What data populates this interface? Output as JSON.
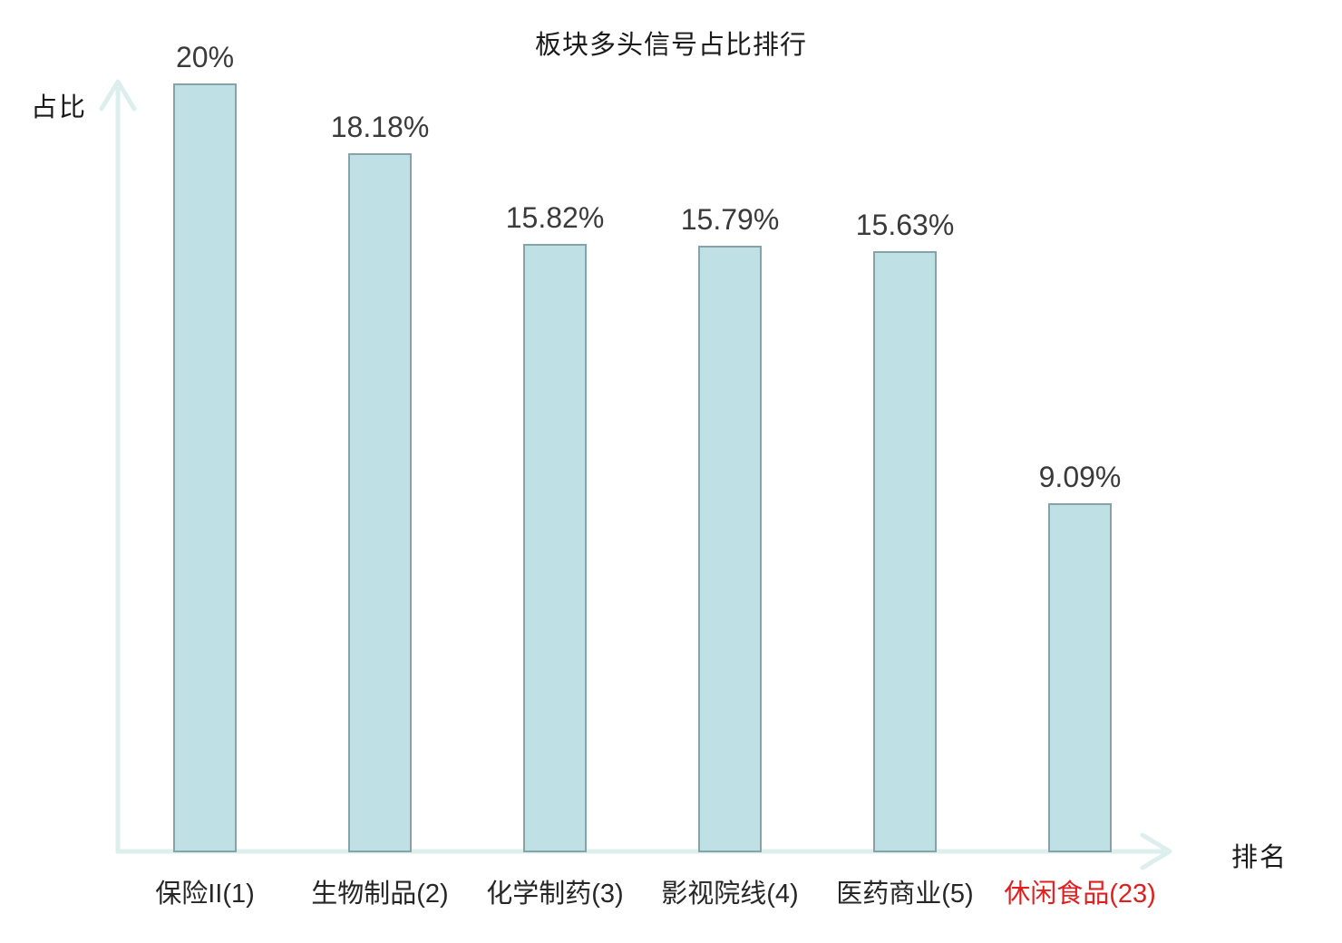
{
  "colors": {
    "background": "#ffffff",
    "title": "#1a1a1a",
    "bar_fill": "#bfe0e4",
    "bar_border": "#85a3a9",
    "axis": "#ddefec",
    "value_label": "#3a3a3a",
    "category_label": "#262626",
    "highlight": "#e02020"
  },
  "chart_data": {
    "type": "bar",
    "title": "板块多头信号占比排行",
    "xlabel": "排名",
    "ylabel": "占比",
    "categories": [
      "保险II(1)",
      "生物制品(2)",
      "化学制药(3)",
      "影视院线(4)",
      "医药商业(5)",
      "休闲食品(23)"
    ],
    "values": [
      20,
      18.18,
      15.82,
      15.79,
      15.63,
      9.09
    ],
    "value_labels": [
      "20%",
      "18.18%",
      "15.82%",
      "15.79%",
      "15.63%",
      "9.09%"
    ],
    "highlighted_category_index": 5,
    "highlight_meaning": "category label drawn in red",
    "ylim": [
      0,
      20
    ],
    "grid": false,
    "legend": false,
    "bar_color": "#bfe0e4",
    "bar_border_color": "#85a3a9"
  }
}
